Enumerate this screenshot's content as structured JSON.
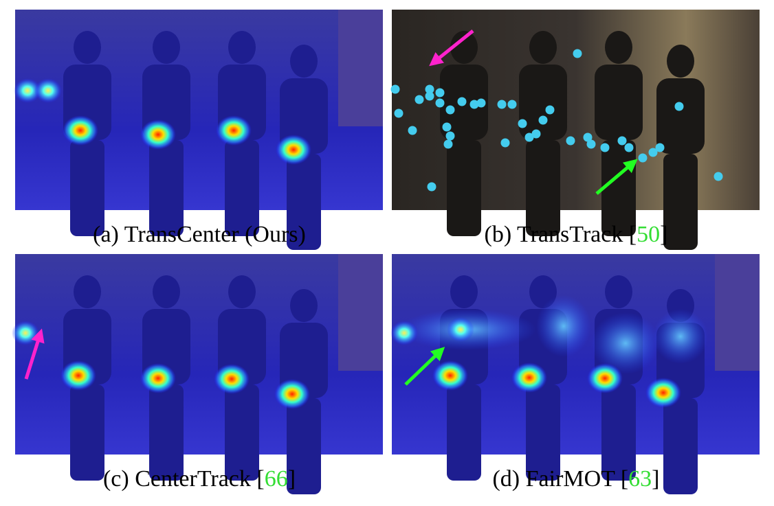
{
  "panels": [
    {
      "caption": "(a) TransCenter (Ours)"
    },
    {
      "caption": "(b) TransTrack [",
      "ref": "50",
      "suffix": "]"
    },
    {
      "caption": "(c) CenterTrack [",
      "ref": "66",
      "suffix": "]"
    },
    {
      "caption": "(d) FairMOT [",
      "ref": "63",
      "suffix": "]"
    }
  ]
}
